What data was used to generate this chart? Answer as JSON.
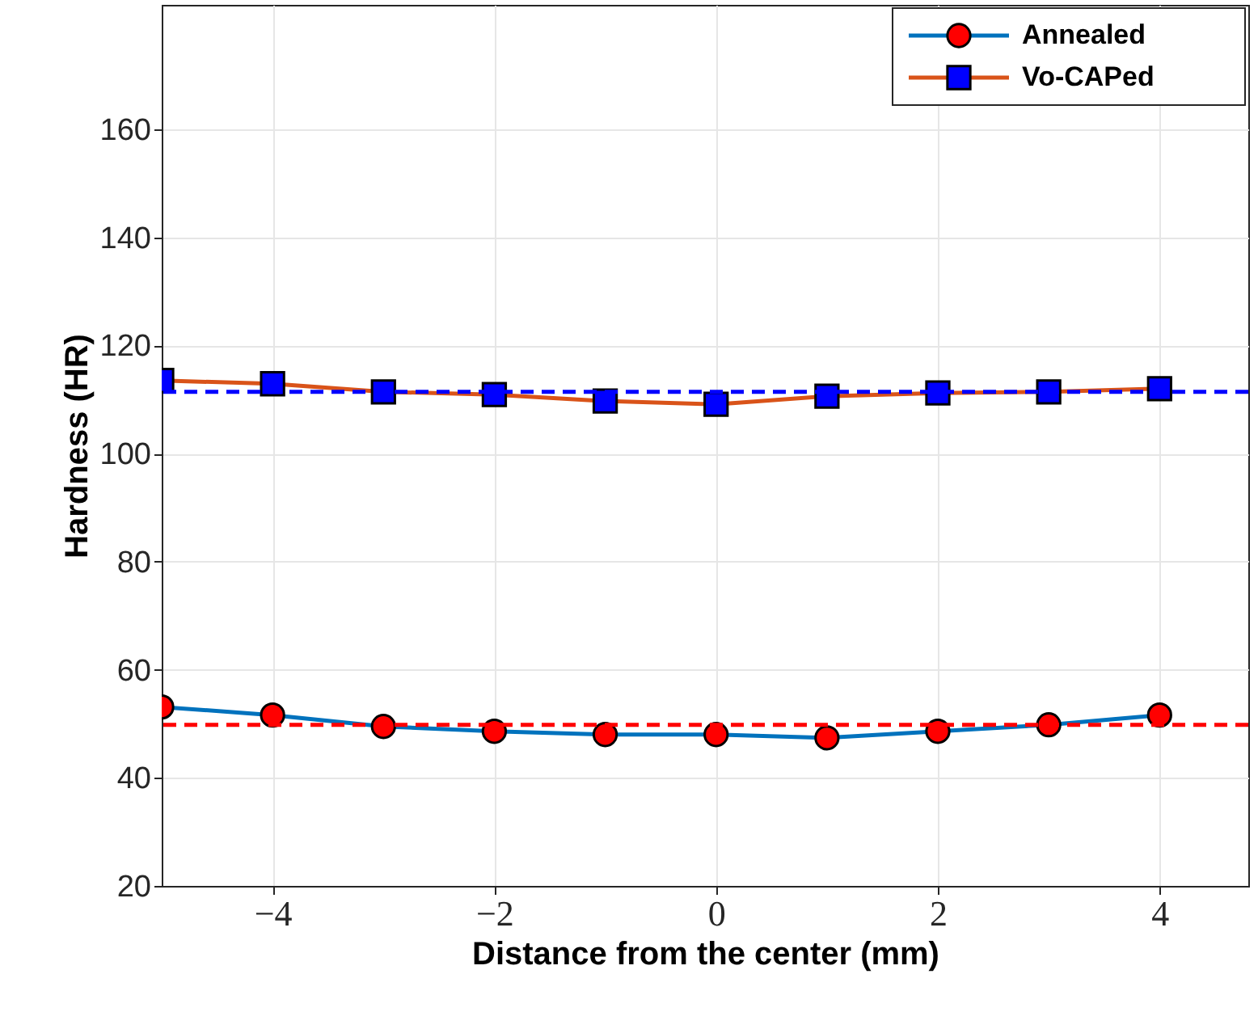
{
  "chart_data": {
    "type": "line",
    "xlabel": "Distance from the center (mm)",
    "ylabel": "Hardness (HR)",
    "x": [
      -5,
      -4,
      -3,
      -2,
      -1,
      0,
      1,
      2,
      3,
      4
    ],
    "series": [
      {
        "name": "Annealed",
        "color": "#0072bd",
        "marker": "circle",
        "colors": [
          "#ff0000",
          "#ff0000",
          "#ff0000",
          "#ff0000",
          "#ff0000",
          "#ff0000",
          "#ff0000",
          "#ff0000",
          "#ff0000",
          "#ff0000"
        ],
        "values": [
          53.1,
          51.6,
          49.5,
          48.6,
          48.0,
          48.0,
          47.4,
          48.6,
          49.8,
          51.6
        ]
      },
      {
        "name": "Vo-CAPed",
        "color": "#d95319",
        "marker": "square",
        "colors": [
          "#0000ff",
          "#0000ff",
          "#0000ff",
          "#0000ff",
          "#0000ff",
          "#0000ff",
          "#0000ff",
          "#0000ff",
          "#0000ff",
          "#0000ff"
        ],
        "values": [
          113.5,
          112.9,
          111.4,
          110.9,
          109.7,
          109.1,
          110.6,
          111.2,
          111.4,
          112.0
        ]
      }
    ],
    "ref_lines": [
      {
        "axis": "y",
        "value": 49.8,
        "color": "#ff0000",
        "line_style": "dashed"
      },
      {
        "axis": "y",
        "value": 111.4,
        "color": "#0000ff",
        "line_style": "dashed"
      }
    ],
    "xlim": [
      -5,
      4.8
    ],
    "xticks": [
      {
        "value": -4,
        "label": "−4"
      },
      {
        "value": -2,
        "label": "−2"
      },
      0,
      2,
      4
    ],
    "ylim": [
      20,
      183
    ],
    "yticks": [
      20,
      40,
      60,
      80,
      100,
      120,
      140,
      160
    ],
    "grid": true,
    "legend": "top right"
  }
}
